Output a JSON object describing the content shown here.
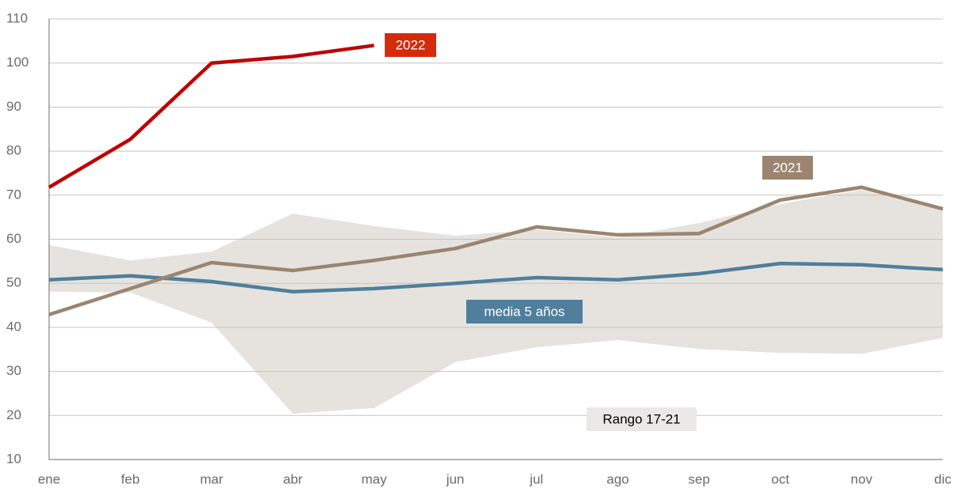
{
  "chart_data": {
    "type": "line",
    "categories": [
      "ene",
      "feb",
      "mar",
      "abr",
      "may",
      "jun",
      "jul",
      "ago",
      "sep",
      "oct",
      "nov",
      "dic"
    ],
    "ylim": [
      10,
      110
    ],
    "yticks": [
      10,
      20,
      30,
      40,
      50,
      60,
      70,
      80,
      90,
      100,
      110
    ],
    "grid": true,
    "band": {
      "name": "Rango 17-21",
      "color": "#e6e3df",
      "upper": [
        58.7,
        55.2,
        57.2,
        65.8,
        63,
        60.8,
        62.2,
        60.4,
        63.7,
        68,
        71.2,
        66.7
      ],
      "lower": [
        48.1,
        47.9,
        41.1,
        20.4,
        21.7,
        32.1,
        35.5,
        37.1,
        35.1,
        34.2,
        34,
        37.6
      ]
    },
    "series": [
      {
        "name": "media 5 años",
        "color": "#4f7f9b",
        "values": [
          50.8,
          51.7,
          50.4,
          48.1,
          48.8,
          50,
          51.3,
          50.8,
          52.2,
          54.5,
          54.2,
          53.1
        ]
      },
      {
        "name": "2021",
        "color": "#9b8570",
        "values": [
          42.9,
          48.8,
          54.7,
          52.9,
          55.2,
          57.9,
          62.8,
          61,
          61.3,
          68.9,
          71.8,
          66.9
        ]
      },
      {
        "name": "2022",
        "color": "#c00000",
        "values": [
          71.8,
          82.7,
          100,
          101.5,
          104,
          null,
          null,
          null,
          null,
          null,
          null,
          null
        ]
      }
    ]
  }
}
